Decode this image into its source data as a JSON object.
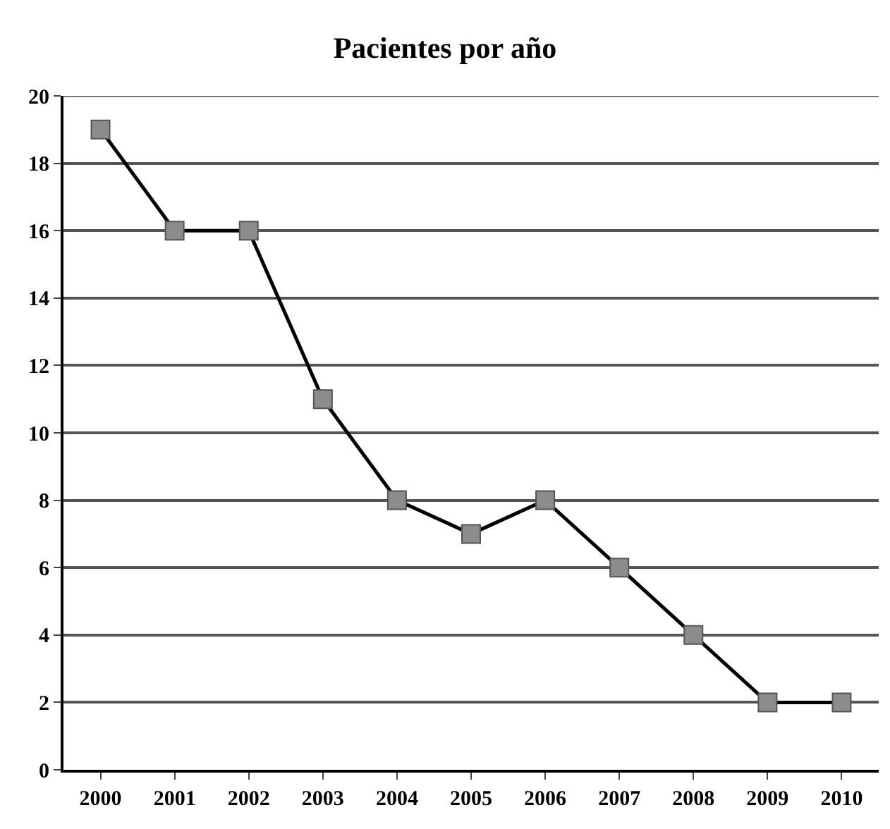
{
  "chart_data": {
    "type": "line",
    "title": "Pacientes por año",
    "categories": [
      "2000",
      "2001",
      "2002",
      "2003",
      "2004",
      "2005",
      "2006",
      "2007",
      "2008",
      "2009",
      "2010"
    ],
    "series": [
      {
        "color": "#000000",
        "values": [
          19,
          16,
          16,
          11,
          8,
          7,
          8,
          6,
          4,
          2,
          2
        ]
      }
    ],
    "ylim": [
      0,
      20
    ],
    "yticks": [
      0,
      2,
      4,
      6,
      8,
      10,
      12,
      14,
      16,
      18,
      20
    ],
    "grid": "y",
    "marker": "square",
    "line_style": "solid"
  }
}
